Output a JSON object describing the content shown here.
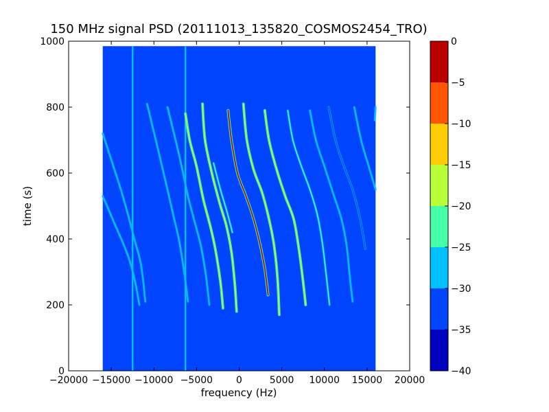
{
  "chart_data": {
    "type": "heatmap",
    "title": "150 MHz signal PSD (20111013_135820_COSMOS2454_TRO)",
    "xlabel": "frequency (Hz)",
    "ylabel": "time (s)",
    "xlim": [
      -20000,
      20000
    ],
    "ylim": [
      0,
      1000
    ],
    "xticks": [
      -20000,
      -15000,
      -10000,
      -5000,
      0,
      5000,
      10000,
      15000,
      20000
    ],
    "xtick_labels": [
      "−20000",
      "−15000",
      "−10000",
      "−5000",
      "0",
      "5000",
      "10000",
      "15000",
      "20000"
    ],
    "yticks": [
      0,
      200,
      400,
      600,
      800,
      1000
    ],
    "ytick_labels": [
      "0",
      "200",
      "400",
      "600",
      "800",
      "1000"
    ],
    "data_extent": {
      "freq": [
        -16000,
        16000
      ],
      "time": [
        0,
        985
      ]
    },
    "background_level": -33,
    "grid": false,
    "colorbar": {
      "levels": [
        0,
        -5,
        -10,
        -15,
        -20,
        -25,
        -30,
        -35,
        -40
      ],
      "level_labels": [
        "0",
        "−5",
        "−10",
        "−15",
        "−20",
        "−25",
        "−30",
        "−35",
        "−40"
      ],
      "colors": [
        "#bb0000",
        "#ff5500",
        "#ffcc00",
        "#b8ff3a",
        "#44ffa8",
        "#00c0ff",
        "#0044ff",
        "#0000c0"
      ]
    },
    "vertical_lines": [
      {
        "freq": -12500,
        "level": -27
      },
      {
        "freq": -6300,
        "level": -27
      }
    ],
    "series": [
      {
        "points": [
          [
            -16000,
            720
          ],
          [
            -14000,
            560
          ],
          [
            -13000,
            470
          ],
          [
            -12300,
            400
          ],
          [
            -11500,
            320
          ],
          [
            -11000,
            210
          ]
        ],
        "level": -27
      },
      {
        "points": [
          [
            -16000,
            530
          ],
          [
            -14500,
            440
          ],
          [
            -13500,
            380
          ],
          [
            -12800,
            330
          ],
          [
            -12200,
            270
          ],
          [
            -11700,
            200
          ]
        ],
        "level": -27
      },
      {
        "points": [
          [
            -10800,
            810
          ],
          [
            -9500,
            670
          ],
          [
            -8500,
            560
          ],
          [
            -7700,
            470
          ],
          [
            -7000,
            390
          ],
          [
            -6400,
            290
          ],
          [
            -6000,
            210
          ]
        ],
        "level": -26
      },
      {
        "points": [
          [
            -8400,
            800
          ],
          [
            -7000,
            650
          ],
          [
            -6000,
            530
          ],
          [
            -5200,
            450
          ],
          [
            -4500,
            380
          ],
          [
            -3900,
            290
          ],
          [
            -3500,
            200
          ]
        ],
        "level": -25
      },
      {
        "points": [
          [
            -6300,
            780
          ],
          [
            -5800,
            700
          ],
          [
            -5000,
            620
          ],
          [
            -4200,
            520
          ],
          [
            -3400,
            440
          ],
          [
            -2800,
            370
          ],
          [
            -2200,
            270
          ],
          [
            -1900,
            190
          ]
        ],
        "level": -18
      },
      {
        "points": [
          [
            -4300,
            810
          ],
          [
            -4000,
            700
          ],
          [
            -3200,
            600
          ],
          [
            -2300,
            510
          ],
          [
            -1500,
            440
          ],
          [
            -900,
            360
          ],
          [
            -500,
            260
          ],
          [
            -300,
            180
          ]
        ],
        "level": -17
      },
      {
        "points": [
          [
            -1300,
            790
          ],
          [
            -900,
            700
          ],
          [
            -200,
            600
          ],
          [
            800,
            530
          ],
          [
            1700,
            460
          ],
          [
            2400,
            390
          ],
          [
            3000,
            310
          ],
          [
            3400,
            230
          ]
        ],
        "level": -3
      },
      {
        "points": [
          [
            -3000,
            630
          ],
          [
            -2200,
            550
          ],
          [
            -1400,
            480
          ],
          [
            -800,
            420
          ]
        ],
        "level": -22
      },
      {
        "points": [
          [
            500,
            810
          ],
          [
            900,
            700
          ],
          [
            1700,
            610
          ],
          [
            2700,
            540
          ],
          [
            3500,
            460
          ],
          [
            4100,
            380
          ],
          [
            4500,
            280
          ],
          [
            4700,
            170
          ]
        ],
        "level": -16
      },
      {
        "points": [
          [
            3000,
            790
          ],
          [
            3500,
            700
          ],
          [
            4400,
            610
          ],
          [
            5400,
            530
          ],
          [
            6400,
            460
          ],
          [
            7000,
            370
          ],
          [
            7500,
            270
          ],
          [
            7800,
            200
          ]
        ],
        "level": -18
      },
      {
        "points": [
          [
            5700,
            790
          ],
          [
            6300,
            700
          ],
          [
            7300,
            620
          ],
          [
            8300,
            550
          ],
          [
            9200,
            470
          ],
          [
            9800,
            380
          ],
          [
            10300,
            270
          ],
          [
            10600,
            200
          ]
        ],
        "level": -24
      },
      {
        "points": [
          [
            8300,
            790
          ],
          [
            9000,
            700
          ],
          [
            10000,
            620
          ],
          [
            11000,
            540
          ],
          [
            12000,
            460
          ],
          [
            12600,
            380
          ],
          [
            13000,
            280
          ],
          [
            13300,
            210
          ]
        ],
        "level": -27
      },
      {
        "points": [
          [
            10500,
            800
          ],
          [
            11300,
            700
          ],
          [
            12300,
            620
          ],
          [
            13300,
            550
          ],
          [
            14200,
            460
          ],
          [
            14800,
            370
          ]
        ],
        "level": -30
      },
      {
        "points": [
          [
            13500,
            800
          ],
          [
            14300,
            700
          ],
          [
            15200,
            620
          ],
          [
            16000,
            550
          ]
        ],
        "level": -28
      },
      {
        "points": [
          [
            16000,
            800
          ],
          [
            15900,
            760
          ]
        ],
        "level": -27
      }
    ]
  }
}
